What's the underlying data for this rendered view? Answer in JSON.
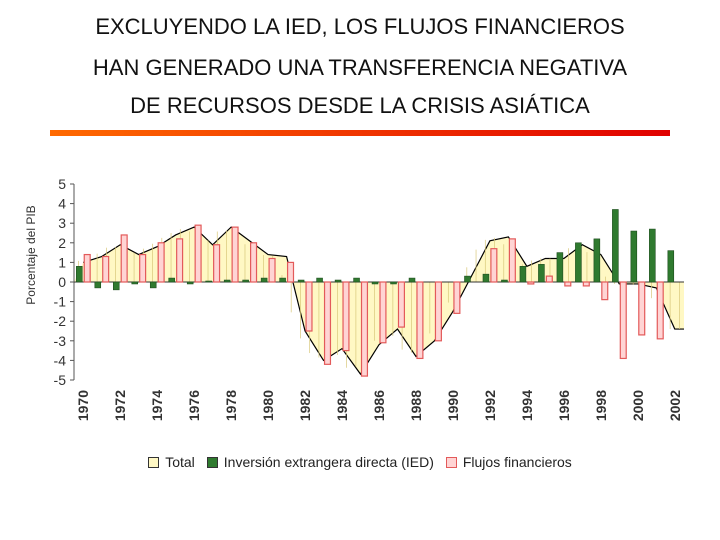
{
  "title_lines": [
    "EXCLUYENDO LA IED, LOS FLUJOS FINANCIEROS",
    "HAN GENERADO UNA TRANSFERENCIA NEGATIVA",
    "DE RECURSOS DESDE LA CRISIS ASIÁTICA"
  ],
  "colors": {
    "total_fill": "#fff8c4",
    "ied_fill": "#2f7a2f",
    "flujos_fill": "#ffd4d4",
    "flujos_stroke": "#e35a5a",
    "accent_start": "#ff6a00",
    "accent_end": "#e00000"
  },
  "chart_data": {
    "type": "bar",
    "title": "EXCLUYENDO LA IED, LOS FLUJOS FINANCIEROS HAN GENERADO UNA TRANSFERENCIA NEGATIVA DE RECURSOS DESDE LA CRISIS ASIÁTICA",
    "xlabel": "",
    "ylabel": "Porcentaje del PIB",
    "ylim": [
      -5,
      5
    ],
    "yticks": [
      "5",
      "4",
      "3",
      "2",
      "1",
      "0",
      "-1",
      "-2",
      "-3",
      "-4",
      "-5"
    ],
    "x": [
      1970,
      1971,
      1972,
      1973,
      1974,
      1975,
      1976,
      1977,
      1978,
      1979,
      1980,
      1981,
      1982,
      1983,
      1984,
      1985,
      1986,
      1987,
      1988,
      1989,
      1990,
      1991,
      1992,
      1993,
      1994,
      1995,
      1996,
      1997,
      1998,
      1999,
      2000,
      2001,
      2002
    ],
    "xticks": [
      "1970",
      "1972",
      "1974",
      "1976",
      "1978",
      "1980",
      "1982",
      "1984",
      "1986",
      "1988",
      "1990",
      "1992",
      "1994",
      "1996",
      "1998",
      "2000",
      "2002"
    ],
    "series": [
      {
        "name": "Total",
        "style": "area",
        "values": [
          1.0,
          1.3,
          1.9,
          1.4,
          1.8,
          2.4,
          2.8,
          1.9,
          2.8,
          2.1,
          1.4,
          1.3,
          -2.5,
          -4.0,
          -3.4,
          -4.7,
          -3.2,
          -2.4,
          -3.8,
          -3.0,
          -1.5,
          0.3,
          2.1,
          2.3,
          0.8,
          1.2,
          1.2,
          1.9,
          1.4,
          -0.1,
          -0.1,
          -0.3,
          -2.4
        ]
      },
      {
        "name": "Inversión extrangera directa (IED)",
        "style": "bar",
        "values": [
          0.8,
          -0.3,
          -0.4,
          -0.1,
          -0.3,
          0.2,
          -0.1,
          0.05,
          0.1,
          0.1,
          0.2,
          0.2,
          0.1,
          0.2,
          0.1,
          0.2,
          -0.1,
          -0.1,
          0.2,
          0.0,
          0.0,
          0.3,
          0.4,
          0.1,
          0.8,
          0.9,
          1.5,
          2.0,
          2.2,
          3.7,
          2.6,
          2.7,
          1.6
        ]
      },
      {
        "name": "Flujos financieros",
        "style": "bar",
        "values": [
          1.4,
          1.3,
          2.4,
          1.4,
          2.0,
          2.2,
          2.9,
          1.9,
          2.8,
          2.0,
          1.2,
          1.0,
          -2.5,
          -4.2,
          -3.5,
          -4.8,
          -3.1,
          -2.3,
          -3.9,
          -3.0,
          -1.6,
          0.0,
          1.7,
          2.2,
          -0.1,
          0.3,
          -0.2,
          -0.2,
          -0.9,
          -3.9,
          -2.7,
          -2.9,
          0.0
        ]
      }
    ],
    "legend_position": "bottom"
  }
}
